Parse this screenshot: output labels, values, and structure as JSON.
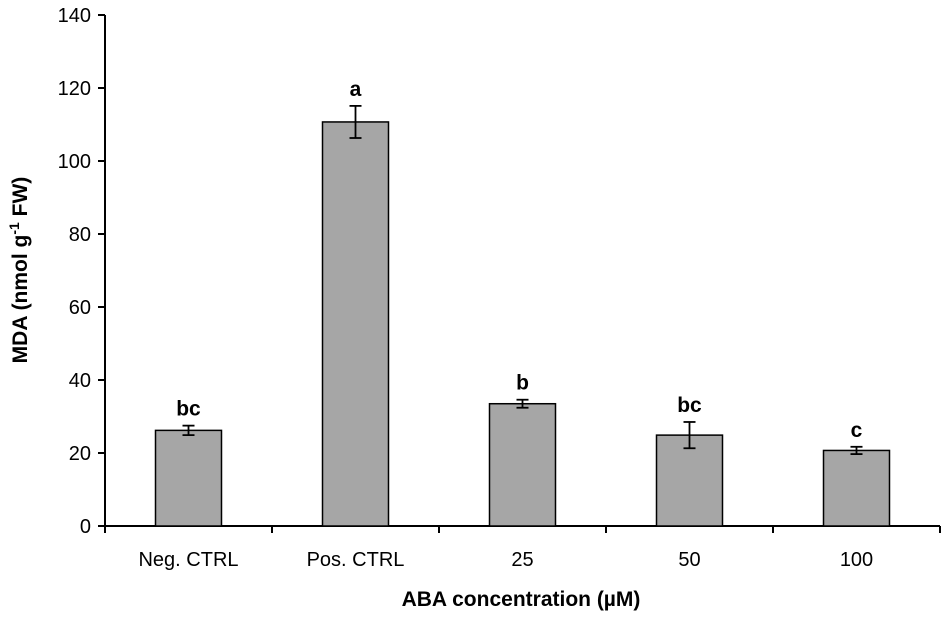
{
  "chart_data": {
    "type": "bar",
    "title": "",
    "xlabel": "ABA concentration (µM)",
    "ylabel": {
      "prefix": "MDA (nmol g",
      "superscript": "-1",
      "suffix": " FW)"
    },
    "ylim": [
      0,
      140
    ],
    "yticks": [
      0,
      20,
      40,
      60,
      80,
      100,
      120,
      140
    ],
    "grid": false,
    "categories": [
      "Neg. CTRL",
      "Pos. CTRL",
      "25",
      "50",
      "100"
    ],
    "values": [
      26.2,
      110.7,
      33.5,
      24.9,
      20.7
    ],
    "errors": [
      1.3,
      4.4,
      1.1,
      3.6,
      1.0
    ],
    "significance": [
      "bc",
      "a",
      "b",
      "bc",
      "c"
    ],
    "bar_color": "#a6a6a6",
    "bar_edge_color": "#000000"
  }
}
